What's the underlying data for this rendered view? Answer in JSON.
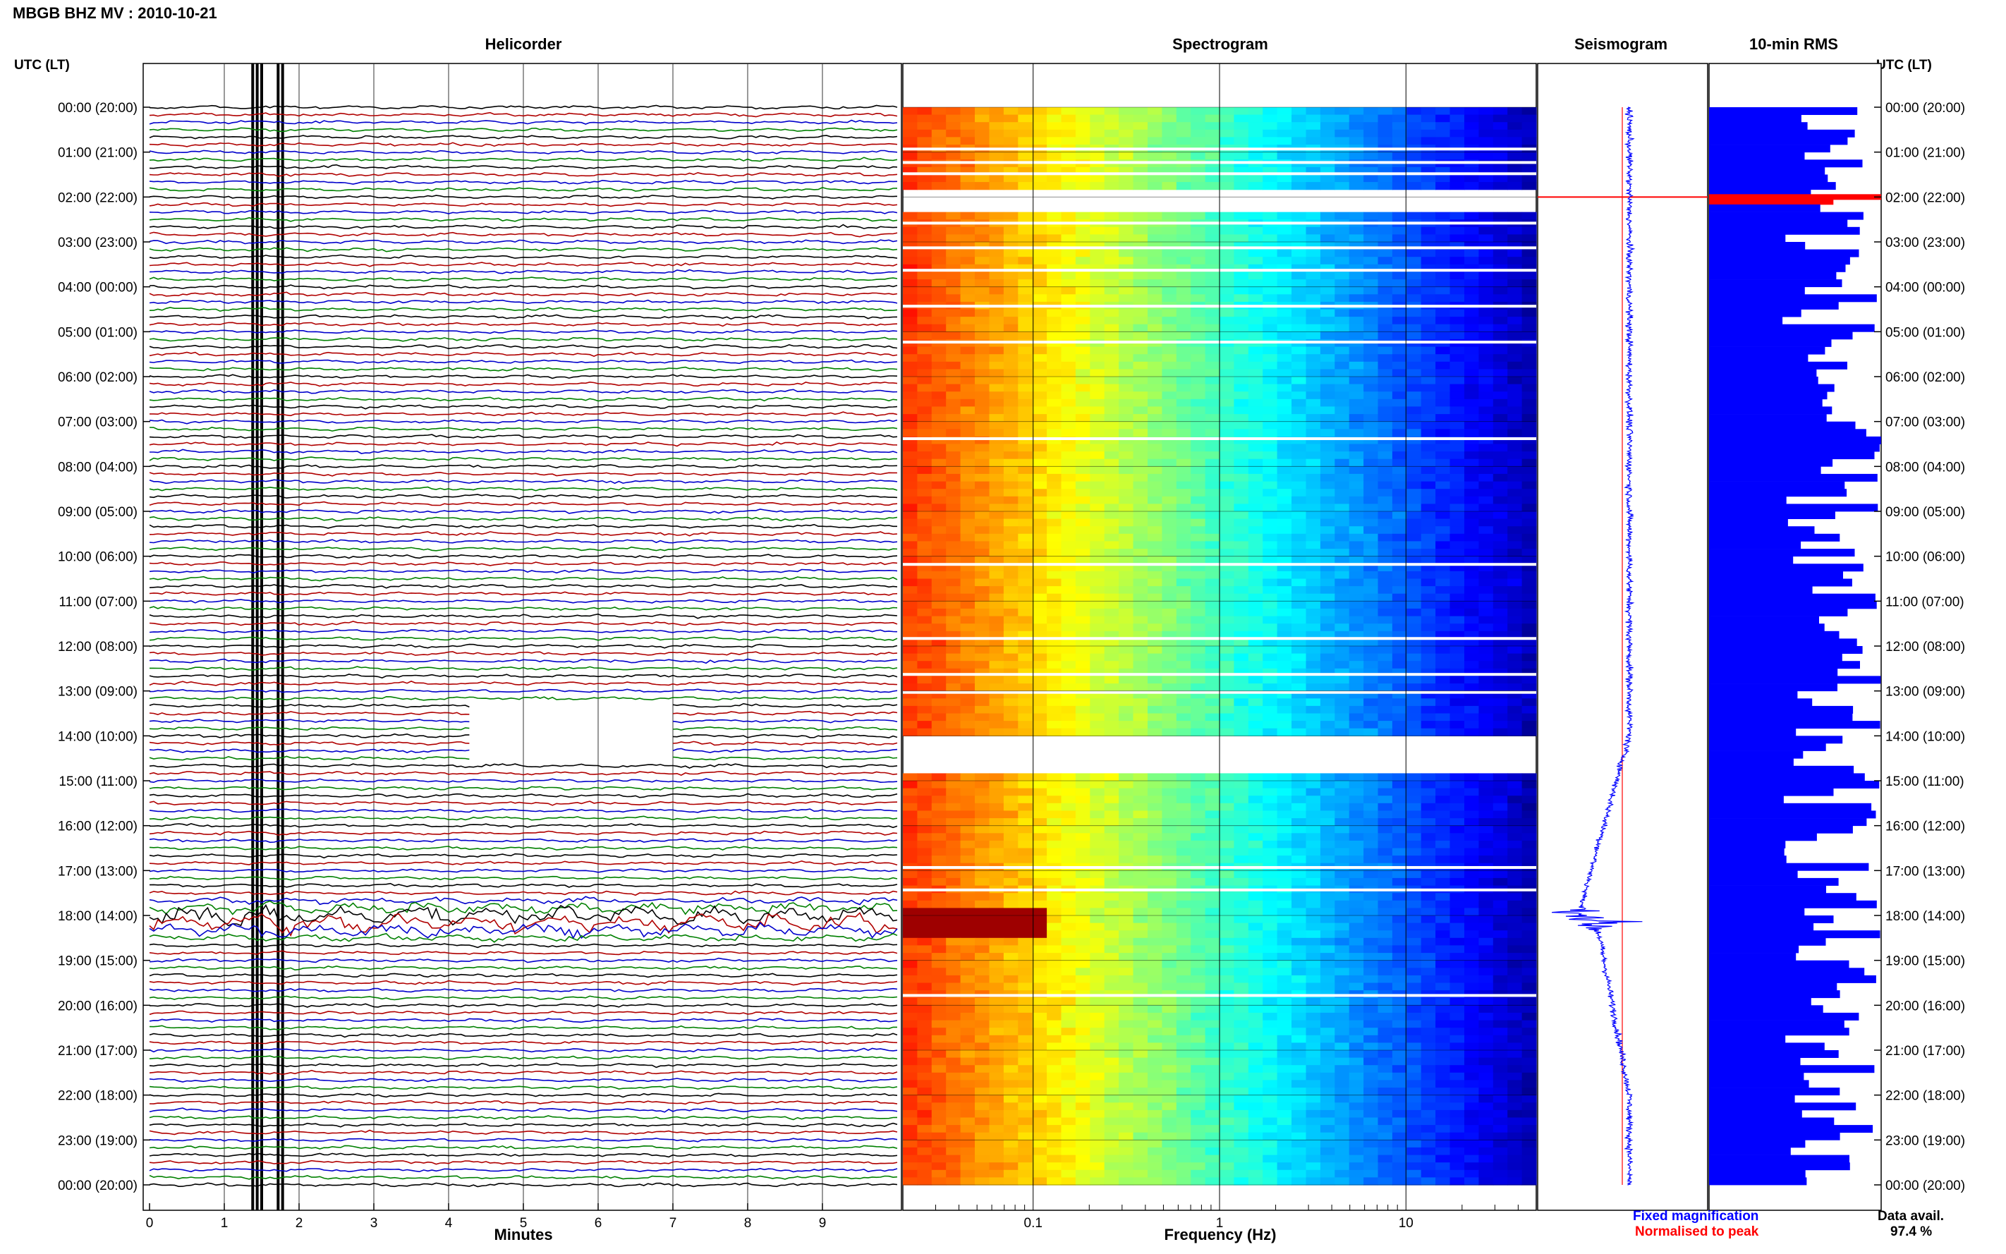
{
  "header": {
    "title": "MBGB BHZ MV : 2010-10-21",
    "utc_label": "UTC (LT)"
  },
  "panels": {
    "helicorder": "Helicorder",
    "spectrogram": "Spectrogram",
    "seismogram": "Seismogram",
    "rms": "10-min RMS"
  },
  "axes": {
    "minutes_label": "Minutes",
    "frequency_label": "Frequency (Hz)"
  },
  "legend": {
    "fixed": "Fixed magnification",
    "normalised": "Normalised to peak"
  },
  "data_avail": {
    "label": "Data avail.",
    "value": "97.4 %"
  },
  "colors": {
    "trace_cycle": [
      "#000000",
      "#b00000",
      "#0000cc",
      "#008000"
    ],
    "seismogram": "#0000ff",
    "normalised": "#ff0000",
    "rms_bar": "#0000ff",
    "rms_gap": "#ff0000"
  },
  "chart_data": [
    {
      "type": "line",
      "panel": "Helicorder",
      "xlabel": "Minutes",
      "xticks": [
        "0",
        "1",
        "2",
        "3",
        "4",
        "5",
        "6",
        "7",
        "8",
        "9"
      ],
      "xlim": [
        0,
        10
      ],
      "row_minutes": 10,
      "rows_per_hour": 6,
      "hour_labels": [
        "00:00 (20:00)",
        "01:00 (21:00)",
        "02:00 (22:00)",
        "03:00 (23:00)",
        "04:00 (00:00)",
        "05:00 (01:00)",
        "06:00 (02:00)",
        "07:00 (03:00)",
        "08:00 (04:00)",
        "09:00 (05:00)",
        "10:00 (06:00)",
        "11:00 (07:00)",
        "12:00 (08:00)",
        "13:00 (09:00)",
        "14:00 (10:00)",
        "15:00 (11:00)",
        "16:00 (12:00)",
        "17:00 (13:00)",
        "18:00 (14:00)",
        "19:00 (15:00)",
        "20:00 (16:00)",
        "21:00 (17:00)",
        "22:00 (18:00)",
        "23:00 (19:00)",
        "00:00 (20:00)"
      ],
      "strong_event_hour": 18.1,
      "gap_hours": [
        [
          13.3,
          13.9
        ],
        [
          14.0,
          14.5
        ]
      ]
    },
    {
      "type": "heatmap",
      "panel": "Spectrogram",
      "xlabel": "Frequency (Hz)",
      "xscale": "log",
      "xlim": [
        0.02,
        50
      ],
      "xticks": [
        "0.1",
        "1",
        "10"
      ],
      "gap_hours": [
        [
          1.8,
          2.3
        ],
        [
          14.0,
          14.7
        ]
      ],
      "event_hour": 18.1
    },
    {
      "type": "line",
      "panel": "Seismogram",
      "series": [
        {
          "name": "Fixed magnification"
        },
        {
          "name": "Normalised to peak"
        }
      ],
      "event_hour": 18.1
    },
    {
      "type": "bar",
      "panel": "10-min RMS",
      "orientation": "horizontal",
      "gap_hour": 2.0
    }
  ]
}
